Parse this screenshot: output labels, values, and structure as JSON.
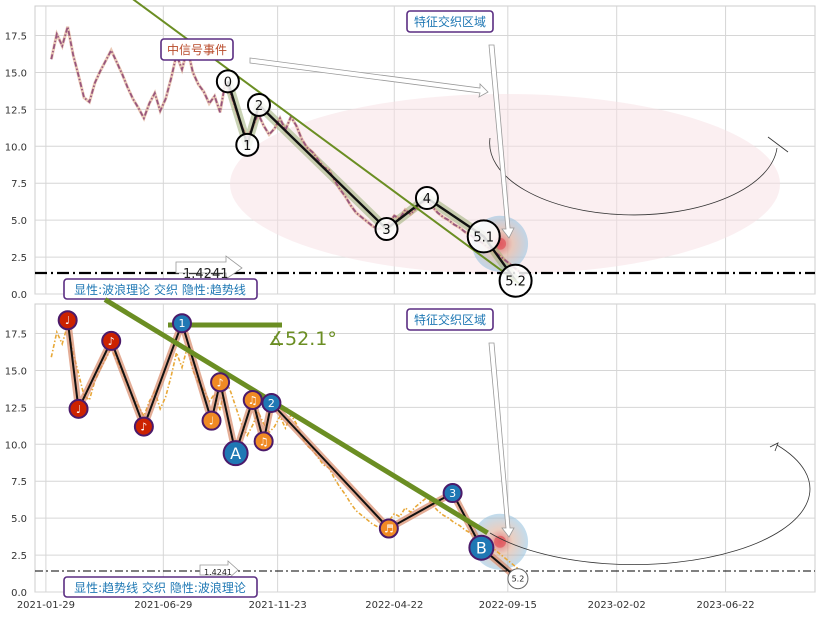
{
  "chart_data": [
    {
      "type": "line",
      "ylim": [
        0,
        19.5
      ],
      "xlim": [
        "2021-01-15",
        "2023-10-15"
      ],
      "yticks": [
        0.0,
        2.5,
        5.0,
        7.5,
        10.0,
        12.5,
        15.0,
        17.5
      ],
      "ytick_labels": [
        "0.0",
        "2.5",
        "5.0",
        "7.5",
        "10.0",
        "12.5",
        "15.0",
        "17.5"
      ],
      "grid": true,
      "series": [
        {
          "color": "#4b0082",
          "style": "dash-dot price",
          "points": [
            [
              "2021-02-05",
              15.9
            ],
            [
              "2021-02-12",
              17.6
            ],
            [
              "2021-02-19",
              16.8
            ],
            [
              "2021-02-26",
              18.1
            ],
            [
              "2021-03-05",
              16.2
            ],
            [
              "2021-03-12",
              14.8
            ],
            [
              "2021-03-19",
              13.3
            ],
            [
              "2021-03-26",
              13.0
            ],
            [
              "2021-04-02",
              14.3
            ],
            [
              "2021-04-09",
              15.1
            ],
            [
              "2021-04-16",
              15.8
            ],
            [
              "2021-04-23",
              16.5
            ],
            [
              "2021-04-30",
              15.7
            ],
            [
              "2021-05-07",
              14.9
            ],
            [
              "2021-05-14",
              14.0
            ],
            [
              "2021-05-21",
              13.2
            ],
            [
              "2021-05-28",
              12.6
            ],
            [
              "2021-06-04",
              11.9
            ],
            [
              "2021-06-11",
              12.9
            ],
            [
              "2021-06-18",
              13.6
            ],
            [
              "2021-06-25",
              12.4
            ],
            [
              "2021-07-02",
              13.2
            ],
            [
              "2021-07-09",
              14.6
            ],
            [
              "2021-07-16",
              16.2
            ],
            [
              "2021-07-23",
              15.2
            ],
            [
              "2021-07-30",
              16.6
            ],
            [
              "2021-08-06",
              15.0
            ],
            [
              "2021-08-13",
              14.2
            ],
            [
              "2021-08-20",
              13.7
            ],
            [
              "2021-08-27",
              12.9
            ],
            [
              "2021-09-03",
              13.4
            ],
            [
              "2021-09-10",
              12.3
            ],
            [
              "2021-09-17",
              14.4
            ],
            [
              "2021-09-24",
              13.5
            ],
            [
              "2021-10-01",
              12.4
            ],
            [
              "2021-10-08",
              11.3
            ],
            [
              "2021-10-15",
              10.6
            ],
            [
              "2021-10-22",
              11.3
            ],
            [
              "2021-10-29",
              12.2
            ],
            [
              "2021-11-05",
              11.4
            ],
            [
              "2021-11-12",
              10.8
            ],
            [
              "2021-11-19",
              11.2
            ],
            [
              "2021-11-26",
              11.9
            ],
            [
              "2021-12-03",
              11.1
            ],
            [
              "2021-12-10",
              12.0
            ],
            [
              "2021-12-17",
              11.4
            ],
            [
              "2021-12-24",
              10.5
            ],
            [
              "2021-12-31",
              9.9
            ],
            [
              "2022-01-07",
              9.6
            ],
            [
              "2022-01-14",
              9.1
            ],
            [
              "2022-01-21",
              8.6
            ],
            [
              "2022-01-28",
              8.4
            ],
            [
              "2022-02-04",
              7.7
            ],
            [
              "2022-02-11",
              7.1
            ],
            [
              "2022-02-18",
              6.6
            ],
            [
              "2022-02-25",
              6.0
            ],
            [
              "2022-03-04",
              5.5
            ],
            [
              "2022-03-11",
              5.2
            ],
            [
              "2022-03-18",
              4.9
            ],
            [
              "2022-03-25",
              4.6
            ],
            [
              "2022-04-01",
              4.4
            ],
            [
              "2022-04-08",
              4.5
            ],
            [
              "2022-04-15",
              4.8
            ],
            [
              "2022-04-22",
              5.3
            ],
            [
              "2022-04-29",
              5.1
            ],
            [
              "2022-05-06",
              5.7
            ],
            [
              "2022-05-13",
              5.4
            ],
            [
              "2022-05-20",
              5.8
            ],
            [
              "2022-05-27",
              6.1
            ],
            [
              "2022-06-03",
              6.4
            ],
            [
              "2022-06-10",
              5.9
            ],
            [
              "2022-06-17",
              5.5
            ],
            [
              "2022-06-24",
              5.2
            ],
            [
              "2022-07-01",
              5.0
            ],
            [
              "2022-07-08",
              4.7
            ],
            [
              "2022-07-15",
              4.5
            ],
            [
              "2022-07-22",
              4.2
            ],
            [
              "2022-07-29",
              4.0
            ],
            [
              "2022-08-05",
              3.7
            ],
            [
              "2022-08-12",
              3.5
            ],
            [
              "2022-08-19",
              3.2
            ],
            [
              "2022-08-26",
              3.0
            ],
            [
              "2022-09-02",
              2.7
            ],
            [
              "2022-09-09",
              2.4
            ],
            [
              "2022-09-16",
              2.1
            ],
            [
              "2022-09-23",
              1.8
            ],
            [
              "2022-09-30",
              1.5
            ],
            [
              "2022-10-07",
              1.2
            ]
          ]
        }
      ],
      "wave_points": [
        {
          "label": "0",
          "x": "2021-09-20",
          "y": 14.4
        },
        {
          "label": "1",
          "x": "2021-10-15",
          "y": 10.1
        },
        {
          "label": "2",
          "x": "2021-10-30",
          "y": 12.8
        },
        {
          "label": "3",
          "x": "2022-04-12",
          "y": 4.4
        },
        {
          "label": "4",
          "x": "2022-06-03",
          "y": 6.5
        },
        {
          "label": "5.1",
          "x": "2022-08-15",
          "y": 3.9
        },
        {
          "label": "5.2",
          "x": "2022-09-25",
          "y": 0.9
        }
      ],
      "trend_line": [
        [
          "2021-05-20",
          20.0
        ],
        [
          "2022-10-05",
          0.5
        ]
      ],
      "support_level": 1.4241,
      "support_label": "1.4241",
      "annotations": [
        "特征交织区域",
        "中信号事件"
      ],
      "footer_label": "显性:波浪理论 交织 隐性:趋势线"
    },
    {
      "type": "line",
      "ylim": [
        0,
        19.5
      ],
      "xlim": [
        "2021-01-15",
        "2023-10-15"
      ],
      "yticks": [
        0.0,
        2.5,
        5.0,
        7.5,
        10.0,
        12.5,
        15.0,
        17.5
      ],
      "ytick_labels": [
        "0.0",
        "2.5",
        "5.0",
        "7.5",
        "10.0",
        "12.5",
        "15.0",
        "17.5"
      ],
      "x_tick_labels": [
        "2021-01-29",
        "2021-06-29",
        "2021-11-23",
        "2022-04-22",
        "2022-09-15",
        "2023-02-02",
        "2023-06-22"
      ],
      "x_tick_dates": [
        "2021-01-29",
        "2021-06-29",
        "2021-11-23",
        "2022-04-22",
        "2022-09-15",
        "2023-02-02",
        "2023-06-22"
      ],
      "grid": true,
      "swing_points": [
        {
          "x": "2021-02-26",
          "y": 18.4,
          "color": "#cc2200",
          "glyph": "♩"
        },
        {
          "x": "2021-03-12",
          "y": 12.4,
          "color": "#cc2200",
          "glyph": "♩"
        },
        {
          "x": "2021-04-23",
          "y": 17.0,
          "color": "#cc2200",
          "glyph": "♪"
        },
        {
          "x": "2021-06-04",
          "y": 11.2,
          "color": "#cc2200",
          "glyph": "♪"
        },
        {
          "x": "2021-07-23",
          "y": 18.2,
          "color": "#1f78b4",
          "glyph": "1"
        },
        {
          "x": "2021-08-30",
          "y": 11.6,
          "color": "#f08a24",
          "glyph": "♩"
        },
        {
          "x": "2021-09-10",
          "y": 14.2,
          "color": "#f08a24",
          "glyph": "♪"
        },
        {
          "x": "2021-09-30",
          "y": 9.4,
          "color": "#1f78b4",
          "glyph": "A"
        },
        {
          "x": "2021-10-22",
          "y": 13.0,
          "color": "#f08a24",
          "glyph": "♫"
        },
        {
          "x": "2021-11-05",
          "y": 10.2,
          "color": "#f08a24",
          "glyph": "♫"
        },
        {
          "x": "2021-11-15",
          "y": 12.8,
          "color": "#1f78b4",
          "glyph": "2"
        },
        {
          "x": "2022-04-15",
          "y": 4.3,
          "color": "#f08a24",
          "glyph": "♬"
        },
        {
          "x": "2022-07-06",
          "y": 6.7,
          "color": "#1f78b4",
          "glyph": "3"
        },
        {
          "x": "2022-08-12",
          "y": 3.0,
          "color": "#1f78b4",
          "glyph": "B"
        },
        {
          "x": "2022-09-28",
          "y": 0.9,
          "color": "#ffffff",
          "glyph": "5.2"
        }
      ],
      "trend_line": [
        [
          "2021-04-15",
          19.8
        ],
        [
          "2022-08-20",
          4.0
        ]
      ],
      "angle_label": "∡52.1°",
      "support_level": 1.4241,
      "support_label": "1.4241",
      "annotations": [
        "特征交织区域"
      ],
      "footer_label": "显性:趋势线 交织 隐性:波浪理论"
    }
  ]
}
